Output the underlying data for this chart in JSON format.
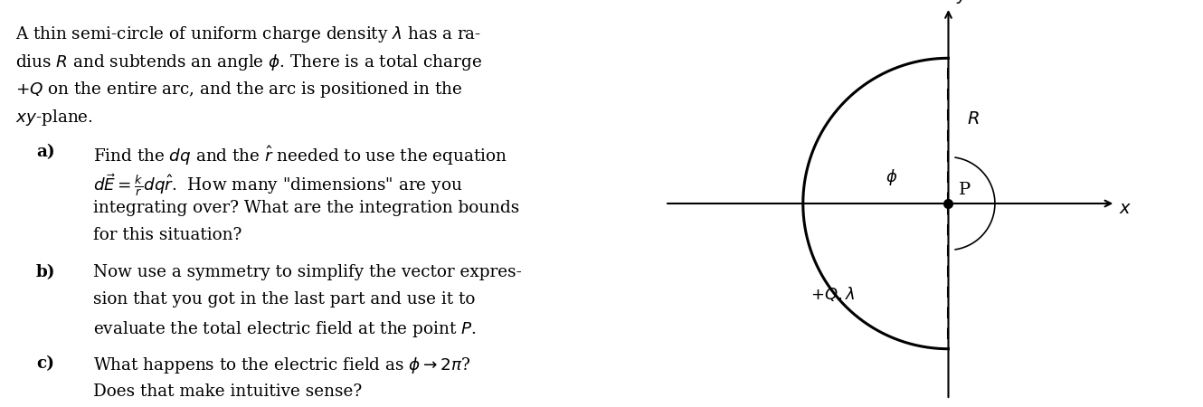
{
  "bg_color": "#ffffff",
  "fig_width": 13.3,
  "fig_height": 4.5,
  "dpi": 100,
  "para_text_line1": "A thin semi-circle of uniform charge density $\\lambda$ has a ra-",
  "para_text_line2": "dius $R$ and subtends an angle $\\phi$. There is a total charge",
  "para_text_line3": "$+Q$ on the entire arc, and the arc is positioned in the",
  "para_text_line4": "$xy$-plane.",
  "item_a_label": "a)",
  "item_a_lines": [
    "Find the $dq$ and the $\\hat{r}$ needed to use the equation",
    "$d\\vec{E} = \\frac{k}{r} dq\\hat{r}$.  How many \"dimensions\" are you",
    "integrating over? What are the integration bounds",
    "for this situation?"
  ],
  "item_b_label": "b)",
  "item_b_lines": [
    "Now use a symmetry to simplify the vector expres-",
    "sion that you got in the last part and use it to",
    "evaluate the total electric field at the point $P$."
  ],
  "item_c_label": "c)",
  "item_c_lines": [
    "What happens to the electric field as $\\phi \\rightarrow 2\\pi$?",
    "Does that make intuitive sense?"
  ],
  "label_P": "P",
  "label_x": "$x$",
  "label_y": "$y$",
  "label_R": "$R$",
  "label_phi": "$\\phi$",
  "label_Q": "$+Q, \\lambda$"
}
